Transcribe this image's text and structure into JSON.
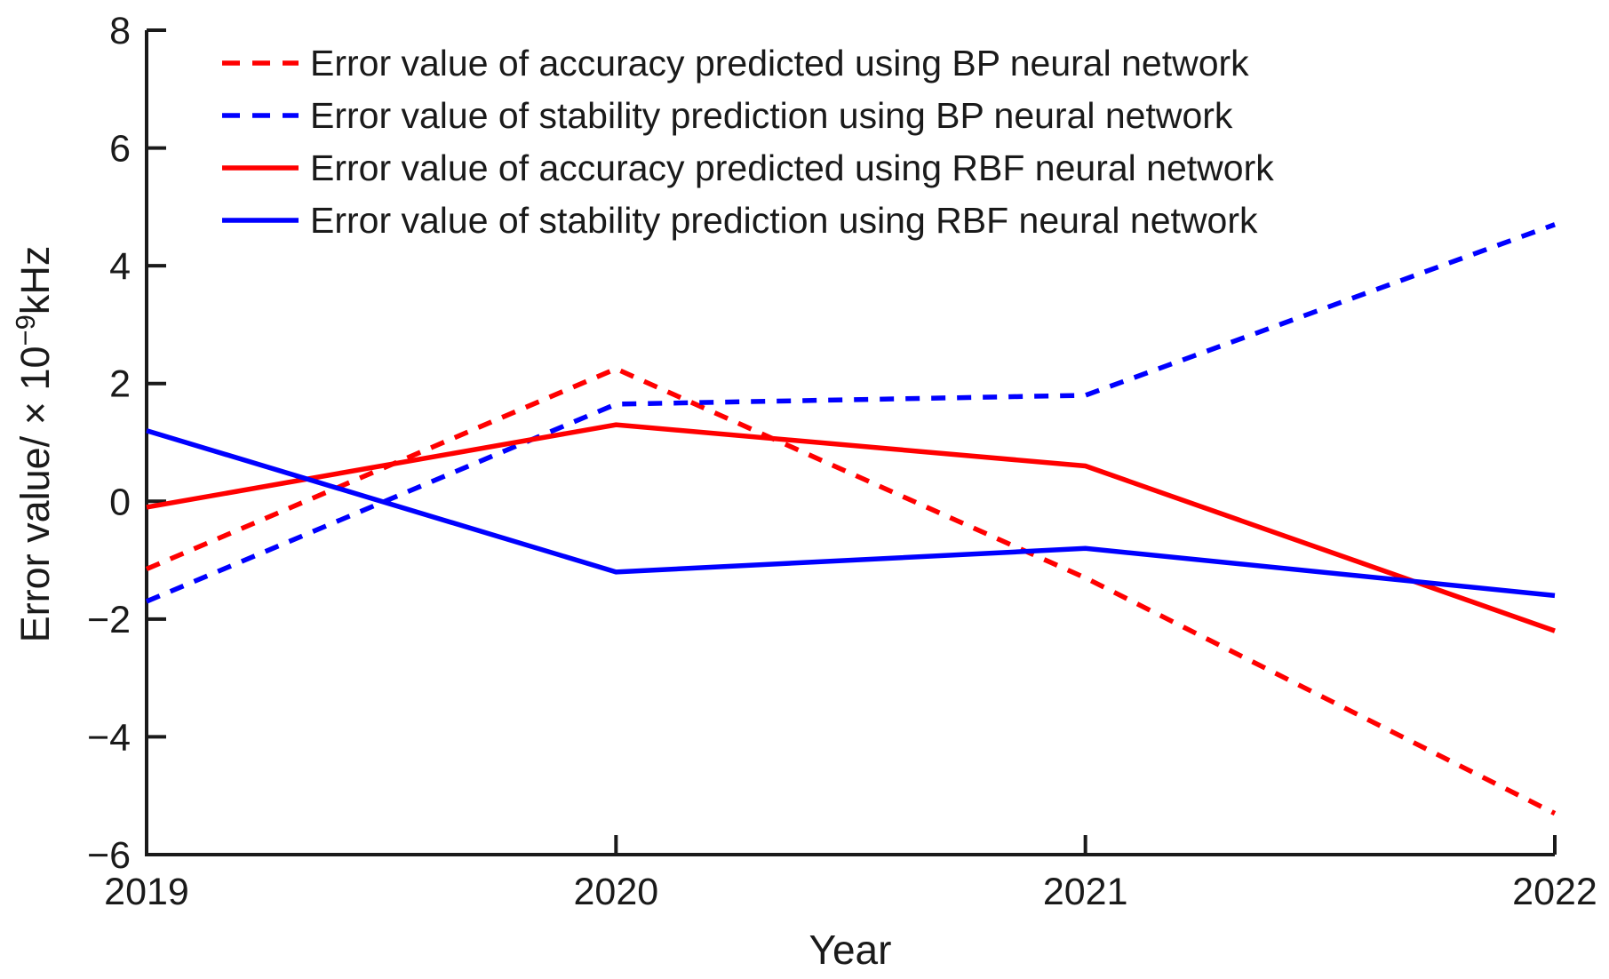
{
  "figure": {
    "background": "#ffffff",
    "text_color": "#1a1a1a",
    "axis_color": "#1a1a1a"
  },
  "labels": {
    "xlabel": "Year",
    "ylabel_prefix": "Error value/ × 10",
    "ylabel_exponent": "−9",
    "ylabel_suffix": "kHz"
  },
  "chart_data": {
    "type": "line",
    "title": "",
    "xlabel": "Year",
    "ylabel": "Error value/ × 10⁻⁹kHz",
    "x": [
      2019,
      2020,
      2021,
      2022
    ],
    "xticks": [
      "2019",
      "2020",
      "2021",
      "2022"
    ],
    "ytick_values": [
      8,
      6,
      4,
      2,
      0,
      -2,
      -4,
      -6
    ],
    "yticks": [
      "8",
      "6",
      "4",
      "2",
      "0",
      "−2",
      "−4",
      "−6"
    ],
    "xlim": [
      2019,
      2022
    ],
    "ylim": [
      -6,
      8
    ],
    "grid": false,
    "legend_position": "top-left",
    "accent_colors": {
      "red": "#ff0000",
      "blue": "#0000ff"
    },
    "series": [
      {
        "name": "Error value of accuracy predicted using BP neural network",
        "color": "#ff0000",
        "line_style": "dashed",
        "values": [
          -1.15,
          2.25,
          -1.3,
          -5.3
        ]
      },
      {
        "name": "Error value of stability prediction using BP neural network",
        "color": "#0000ff",
        "line_style": "dashed",
        "values": [
          -1.7,
          1.65,
          1.8,
          4.7
        ]
      },
      {
        "name": "Error value of accuracy predicted using RBF neural network",
        "color": "#ff0000",
        "line_style": "solid",
        "values": [
          -0.1,
          1.3,
          0.6,
          -2.2
        ]
      },
      {
        "name": "Error value of stability prediction using RBF neural network",
        "color": "#0000ff",
        "line_style": "solid",
        "values": [
          1.2,
          -1.2,
          -0.8,
          -1.6
        ]
      }
    ]
  }
}
